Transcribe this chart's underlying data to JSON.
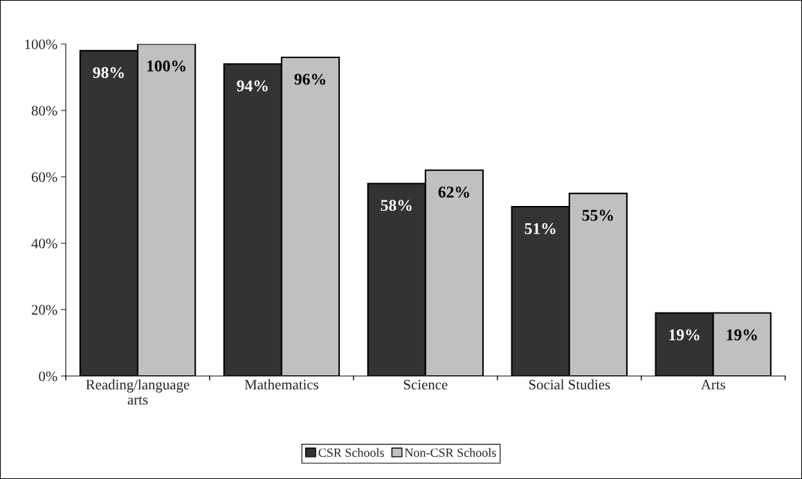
{
  "chart_data": {
    "type": "bar",
    "categories": [
      "Reading/language\narts",
      "Mathematics",
      "Science",
      "Social Studies",
      "Arts"
    ],
    "series": [
      {
        "name": "CSR Schools",
        "color": "#333333",
        "values": [
          98,
          94,
          58,
          51,
          19
        ],
        "value_labels": [
          "98%",
          "94%",
          "58%",
          "51%",
          "19%"
        ]
      },
      {
        "name": "Non-CSR Schools",
        "color": "#c0c0c0",
        "values": [
          100,
          96,
          62,
          55,
          19
        ],
        "value_labels": [
          "100%",
          "96%",
          "62%",
          "55%",
          "19%"
        ]
      }
    ],
    "ylim": [
      0,
      100
    ],
    "yticks": [
      {
        "value": 0,
        "label": "0%"
      },
      {
        "value": 20,
        "label": "20%"
      },
      {
        "value": 40,
        "label": "40%"
      },
      {
        "value": 60,
        "label": "60%"
      },
      {
        "value": 80,
        "label": "80%"
      },
      {
        "value": 100,
        "label": "100%"
      }
    ],
    "grid": false,
    "legend": "bottom"
  }
}
